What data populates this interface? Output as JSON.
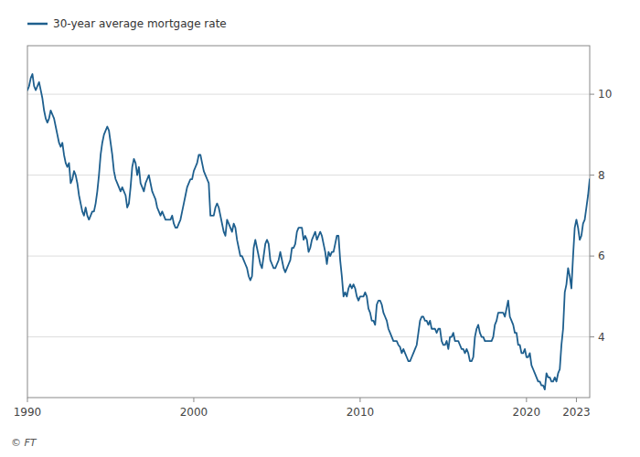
{
  "chart_data": {
    "type": "line",
    "series": [
      {
        "name": "30-year average mortgage rate",
        "color": "#1e5f8e",
        "values": [
          10.1,
          10.2,
          10.4,
          10.5,
          10.2,
          10.1,
          10.2,
          10.3,
          10.1,
          9.9,
          9.6,
          9.4,
          9.3,
          9.4,
          9.6,
          9.5,
          9.4,
          9.2,
          9.0,
          8.8,
          8.7,
          8.8,
          8.5,
          8.3,
          8.2,
          8.3,
          7.8,
          7.9,
          8.1,
          8.0,
          7.8,
          7.5,
          7.3,
          7.1,
          7.0,
          7.2,
          7.0,
          6.9,
          7.0,
          7.1,
          7.1,
          7.3,
          7.6,
          8.0,
          8.5,
          8.8,
          9.0,
          9.1,
          9.2,
          9.1,
          8.8,
          8.5,
          8.1,
          7.9,
          7.8,
          7.7,
          7.6,
          7.7,
          7.6,
          7.5,
          7.2,
          7.3,
          7.7,
          8.2,
          8.4,
          8.3,
          8.0,
          8.2,
          7.8,
          7.7,
          7.6,
          7.8,
          7.9,
          8.0,
          7.8,
          7.6,
          7.5,
          7.4,
          7.2,
          7.1,
          7.0,
          7.1,
          7.0,
          6.9,
          6.9,
          6.9,
          6.9,
          7.0,
          6.8,
          6.7,
          6.7,
          6.8,
          6.9,
          7.1,
          7.3,
          7.5,
          7.7,
          7.8,
          7.9,
          7.9,
          8.1,
          8.2,
          8.3,
          8.5,
          8.5,
          8.3,
          8.1,
          8.0,
          7.9,
          7.8,
          7.0,
          7.0,
          7.0,
          7.2,
          7.3,
          7.2,
          7.0,
          6.8,
          6.6,
          6.5,
          6.9,
          6.8,
          6.7,
          6.6,
          6.8,
          6.7,
          6.4,
          6.2,
          6.0,
          6.0,
          5.9,
          5.8,
          5.7,
          5.5,
          5.4,
          5.5,
          6.2,
          6.4,
          6.2,
          6.0,
          5.8,
          5.7,
          6.0,
          6.3,
          6.4,
          6.3,
          5.9,
          5.8,
          5.7,
          5.7,
          5.8,
          5.9,
          6.1,
          5.9,
          5.7,
          5.6,
          5.7,
          5.8,
          5.9,
          6.2,
          6.2,
          6.3,
          6.6,
          6.7,
          6.7,
          6.7,
          6.4,
          6.5,
          6.4,
          6.1,
          6.2,
          6.4,
          6.5,
          6.6,
          6.4,
          6.5,
          6.6,
          6.5,
          6.3,
          6.1,
          5.8,
          6.1,
          6.0,
          6.1,
          6.1,
          6.3,
          6.5,
          6.5,
          5.9,
          5.5,
          5.0,
          5.1,
          5.0,
          5.2,
          5.3,
          5.2,
          5.3,
          5.2,
          5.0,
          4.9,
          5.0,
          5.0,
          5.0,
          5.1,
          5.0,
          4.7,
          4.6,
          4.4,
          4.4,
          4.3,
          4.8,
          4.9,
          4.9,
          4.8,
          4.6,
          4.5,
          4.4,
          4.2,
          4.1,
          4.0,
          3.9,
          3.9,
          3.9,
          3.8,
          3.75,
          3.6,
          3.7,
          3.6,
          3.5,
          3.4,
          3.4,
          3.5,
          3.6,
          3.7,
          3.8,
          4.1,
          4.4,
          4.5,
          4.5,
          4.4,
          4.4,
          4.3,
          4.4,
          4.2,
          4.2,
          4.2,
          4.1,
          4.2,
          4.2,
          3.9,
          3.8,
          3.8,
          3.9,
          3.7,
          4.0,
          4.0,
          4.1,
          3.9,
          3.9,
          3.9,
          3.8,
          3.7,
          3.7,
          3.6,
          3.7,
          3.6,
          3.4,
          3.4,
          3.5,
          4.0,
          4.2,
          4.3,
          4.1,
          4.0,
          4.0,
          3.9,
          3.9,
          3.9,
          3.9,
          3.9,
          4.0,
          4.3,
          4.4,
          4.6,
          4.6,
          4.6,
          4.6,
          4.5,
          4.7,
          4.9,
          4.5,
          4.4,
          4.3,
          4.1,
          4.1,
          3.8,
          3.8,
          3.6,
          3.6,
          3.7,
          3.5,
          3.5,
          3.6,
          3.3,
          3.2,
          3.1,
          3.0,
          2.9,
          2.9,
          2.8,
          2.8,
          2.7,
          3.1,
          3.0,
          3.0,
          2.9,
          2.9,
          3.0,
          2.9,
          3.1,
          3.2,
          3.8,
          4.2,
          5.1,
          5.3,
          5.7,
          5.5,
          5.2,
          6.0,
          6.7,
          6.9,
          6.7,
          6.4,
          6.5,
          6.8,
          6.9,
          7.2,
          7.5,
          7.9
        ]
      }
    ],
    "x": [
      1990.0,
      1990.1,
      1990.2,
      1990.3,
      1990.4,
      1990.5,
      1990.6,
      1990.7,
      1990.8,
      1990.9,
      1991.0,
      1991.1,
      1991.2,
      1991.3,
      1991.4,
      1991.5,
      1991.6,
      1991.7,
      1991.8,
      1991.9,
      1992.0,
      1992.1,
      1992.2,
      1992.3,
      1992.4,
      1992.5,
      1992.6,
      1992.7,
      1992.8,
      1992.9,
      1993.0,
      1993.1,
      1993.2,
      1993.3,
      1993.4,
      1993.5,
      1993.6,
      1993.7,
      1993.8,
      1993.9,
      1994.0,
      1994.1,
      1994.2,
      1994.3,
      1994.4,
      1994.5,
      1994.6,
      1994.7,
      1994.8,
      1994.9,
      1995.0,
      1995.1,
      1995.2,
      1995.3,
      1995.4,
      1995.5,
      1995.6,
      1995.7,
      1995.8,
      1995.9,
      1996.0,
      1996.1,
      1996.2,
      1996.3,
      1996.4,
      1996.5,
      1996.6,
      1996.7,
      1996.8,
      1996.9,
      1997.0,
      1997.1,
      1997.2,
      1997.3,
      1997.4,
      1997.5,
      1997.6,
      1997.7,
      1997.8,
      1997.9,
      1998.0,
      1998.1,
      1998.2,
      1998.3,
      1998.4,
      1998.5,
      1998.6,
      1998.7,
      1998.8,
      1998.9,
      1999.0,
      1999.1,
      1999.2,
      1999.3,
      1999.4,
      1999.5,
      1999.6,
      1999.7,
      1999.8,
      1999.9,
      2000.0,
      2000.1,
      2000.2,
      2000.3,
      2000.4,
      2000.5,
      2000.6,
      2000.7,
      2000.8,
      2000.9,
      2001.0,
      2001.1,
      2001.2,
      2001.3,
      2001.4,
      2001.5,
      2001.6,
      2001.7,
      2001.8,
      2001.9,
      2002.0,
      2002.1,
      2002.2,
      2002.3,
      2002.4,
      2002.5,
      2002.6,
      2002.7,
      2002.8,
      2002.9,
      2003.0,
      2003.1,
      2003.2,
      2003.3,
      2003.4,
      2003.5,
      2003.6,
      2003.7,
      2003.8,
      2003.9,
      2004.0,
      2004.1,
      2004.2,
      2004.3,
      2004.4,
      2004.5,
      2004.6,
      2004.7,
      2004.8,
      2004.9,
      2005.0,
      2005.1,
      2005.2,
      2005.3,
      2005.4,
      2005.5,
      2005.6,
      2005.7,
      2005.8,
      2005.9,
      2006.0,
      2006.1,
      2006.2,
      2006.3,
      2006.4,
      2006.5,
      2006.6,
      2006.7,
      2006.8,
      2006.9,
      2007.0,
      2007.1,
      2007.2,
      2007.3,
      2007.4,
      2007.5,
      2007.6,
      2007.7,
      2007.8,
      2007.9,
      2008.0,
      2008.1,
      2008.2,
      2008.3,
      2008.4,
      2008.5,
      2008.6,
      2008.7,
      2008.8,
      2008.9,
      2009.0,
      2009.1,
      2009.2,
      2009.3,
      2009.4,
      2009.5,
      2009.6,
      2009.7,
      2009.8,
      2009.9,
      2010.0,
      2010.1,
      2010.2,
      2010.3,
      2010.4,
      2010.5,
      2010.6,
      2010.7,
      2010.8,
      2010.9,
      2011.0,
      2011.1,
      2011.2,
      2011.3,
      2011.4,
      2011.5,
      2011.6,
      2011.7,
      2011.8,
      2011.9,
      2012.0,
      2012.1,
      2012.2,
      2012.3,
      2012.4,
      2012.5,
      2012.6,
      2012.7,
      2012.8,
      2012.9,
      2013.0,
      2013.1,
      2013.2,
      2013.3,
      2013.4,
      2013.5,
      2013.6,
      2013.7,
      2013.8,
      2013.9,
      2014.0,
      2014.1,
      2014.2,
      2014.3,
      2014.4,
      2014.5,
      2014.6,
      2014.7,
      2014.8,
      2014.9,
      2015.0,
      2015.1,
      2015.2,
      2015.3,
      2015.4,
      2015.5,
      2015.6,
      2015.7,
      2015.8,
      2015.9,
      2016.0,
      2016.1,
      2016.2,
      2016.3,
      2016.4,
      2016.5,
      2016.6,
      2016.7,
      2016.8,
      2016.9,
      2017.0,
      2017.1,
      2017.2,
      2017.3,
      2017.4,
      2017.5,
      2017.6,
      2017.7,
      2017.8,
      2017.9,
      2018.0,
      2018.1,
      2018.2,
      2018.3,
      2018.4,
      2018.5,
      2018.6,
      2018.7,
      2018.8,
      2018.9,
      2019.0,
      2019.1,
      2019.2,
      2019.3,
      2019.4,
      2019.5,
      2019.6,
      2019.7,
      2019.8,
      2019.9,
      2020.0,
      2020.1,
      2020.2,
      2020.3,
      2020.4,
      2020.5,
      2020.6,
      2020.7,
      2020.8,
      2020.9,
      2021.0,
      2021.1,
      2021.2,
      2021.3,
      2021.4,
      2021.5,
      2021.6,
      2021.7,
      2021.8,
      2021.9,
      2022.0,
      2022.1,
      2022.2,
      2022.3,
      2022.4,
      2022.5,
      2022.6,
      2022.7,
      2022.8,
      2022.9,
      2023.0,
      2023.1,
      2023.2,
      2023.3,
      2023.4,
      2023.5,
      2023.6,
      2023.7,
      2023.8
    ],
    "xlim": [
      1990,
      2023.8
    ],
    "xticks": [
      1990,
      2000,
      2010,
      2020,
      2023
    ],
    "ylim": [
      2.5,
      11.2
    ],
    "yticks": [
      4,
      6,
      8,
      10
    ],
    "grid": true,
    "legend": "upper left",
    "annotations": [
      "© FT"
    ]
  }
}
